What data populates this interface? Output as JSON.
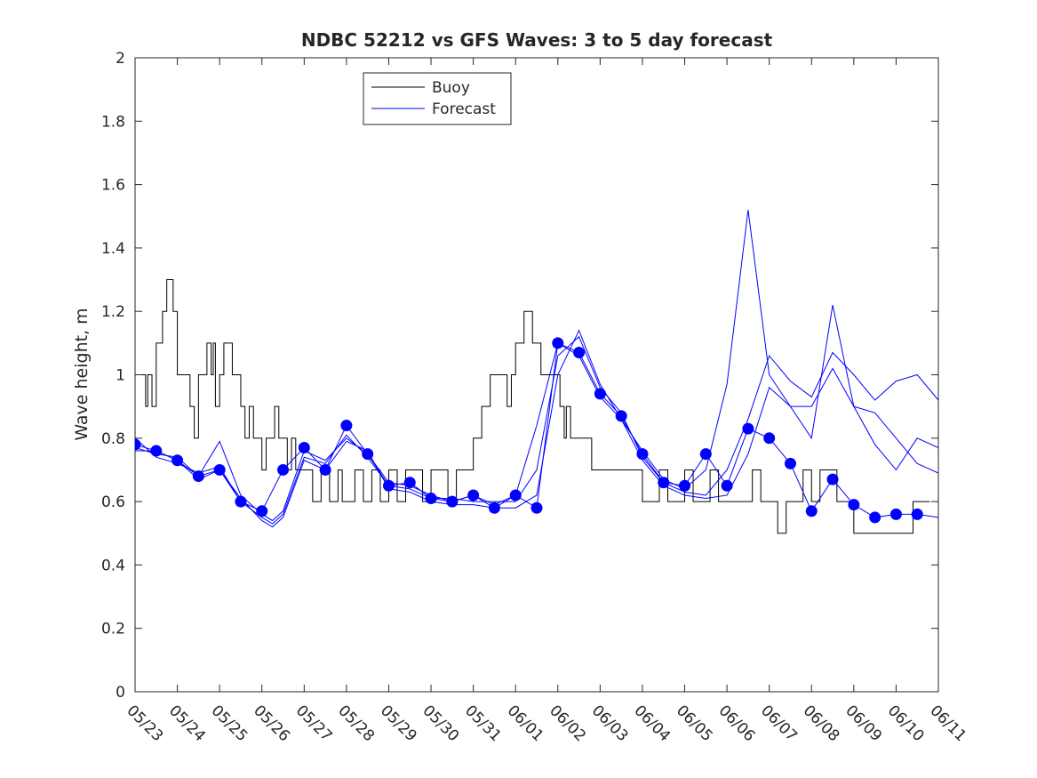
{
  "chart_data": {
    "type": "line",
    "title": "NDBC 52212 vs GFS Waves: 3 to 5 day forecast",
    "xlabel": "",
    "ylabel": "Wave height, m",
    "xlim": [
      "05/23",
      "06/11"
    ],
    "ylim": [
      0,
      2
    ],
    "yticks": [
      0,
      0.2,
      0.4,
      0.6,
      0.8,
      1,
      1.2,
      1.4,
      1.6,
      1.8,
      2
    ],
    "ytick_labels": [
      "0",
      "0.2",
      "0.4",
      "0.6",
      "0.8",
      "1",
      "1.2",
      "1.4",
      "1.6",
      "1.8",
      "2"
    ],
    "xtick_labels": [
      "05/23",
      "05/24",
      "05/25",
      "05/26",
      "05/27",
      "05/28",
      "05/29",
      "05/30",
      "05/31",
      "06/01",
      "06/02",
      "06/03",
      "06/04",
      "06/05",
      "06/06",
      "06/07",
      "06/08",
      "06/09",
      "06/10",
      "06/11"
    ],
    "grid": false,
    "legend": {
      "position": "top-left-inner",
      "entries": [
        "Buoy",
        "Forecast"
      ]
    },
    "colors": {
      "buoy": "#000000",
      "forecast": "#0000ff",
      "markers": "#0000ff"
    },
    "series": [
      {
        "name": "Buoy",
        "x_days": [
          0,
          0.2,
          0.25,
          0.3,
          0.4,
          0.5,
          0.6,
          0.65,
          0.7,
          0.75,
          0.8,
          0.9,
          1.0,
          1.1,
          1.2,
          1.3,
          1.4,
          1.5,
          1.6,
          1.7,
          1.8,
          1.85,
          1.9,
          2.0,
          2.1,
          2.2,
          2.3,
          2.4,
          2.5,
          2.6,
          2.7,
          2.8,
          2.9,
          3.0,
          3.1,
          3.2,
          3.3,
          3.4,
          3.5,
          3.6,
          3.7,
          3.8,
          3.9,
          4.0,
          4.2,
          4.4,
          4.6,
          4.8,
          4.9,
          5.0,
          5.2,
          5.4,
          5.6,
          5.8,
          6.0,
          6.2,
          6.4,
          6.6,
          6.8,
          7.0,
          7.2,
          7.4,
          7.6,
          7.8,
          8.0,
          8.2,
          8.4,
          8.6,
          8.8,
          8.9,
          9.0,
          9.2,
          9.4,
          9.6,
          9.8,
          10.0,
          10.05,
          10.1,
          10.15,
          10.2,
          10.3,
          10.4,
          10.5,
          10.6,
          10.8,
          11.0,
          11.2,
          11.4,
          11.6,
          11.8,
          12.0,
          12.2,
          12.4,
          12.6,
          12.8,
          13.0,
          13.2,
          13.4,
          13.6,
          13.8,
          14.0,
          14.2,
          14.4,
          14.6,
          14.8,
          15.0,
          15.2,
          15.4,
          15.6,
          15.8,
          16.0,
          16.2,
          16.4,
          16.6,
          16.8,
          17.0,
          17.2,
          17.4,
          17.6,
          17.8,
          18.0,
          18.2,
          18.4,
          18.6,
          18.8
        ],
        "values": [
          1.0,
          1.0,
          0.9,
          1.0,
          0.9,
          1.1,
          1.1,
          1.2,
          1.2,
          1.3,
          1.3,
          1.2,
          1.0,
          1.0,
          1.0,
          0.9,
          0.8,
          1.0,
          1.0,
          1.1,
          1.0,
          1.1,
          0.9,
          1.0,
          1.1,
          1.1,
          1.0,
          1.0,
          0.9,
          0.8,
          0.9,
          0.8,
          0.8,
          0.7,
          0.8,
          0.8,
          0.9,
          0.8,
          0.8,
          0.7,
          0.8,
          0.7,
          0.7,
          0.7,
          0.6,
          0.7,
          0.6,
          0.7,
          0.6,
          0.6,
          0.7,
          0.6,
          0.7,
          0.6,
          0.7,
          0.6,
          0.7,
          0.7,
          0.6,
          0.7,
          0.7,
          0.6,
          0.7,
          0.7,
          0.8,
          0.9,
          1.0,
          1.0,
          0.9,
          1.0,
          1.1,
          1.2,
          1.1,
          1.0,
          1.0,
          1.0,
          0.9,
          0.9,
          0.8,
          0.9,
          0.8,
          0.8,
          0.8,
          0.8,
          0.7,
          0.7,
          0.7,
          0.7,
          0.7,
          0.7,
          0.6,
          0.6,
          0.7,
          0.6,
          0.6,
          0.7,
          0.6,
          0.6,
          0.7,
          0.6,
          0.6,
          0.6,
          0.6,
          0.7,
          0.6,
          0.6,
          0.5,
          0.6,
          0.6,
          0.7,
          0.6,
          0.7,
          0.7,
          0.6,
          0.6,
          0.5,
          0.5,
          0.5,
          0.5,
          0.5,
          0.5,
          0.5,
          0.6,
          0.6,
          0.6
        ]
      },
      {
        "name": "Forecast",
        "x_days": [
          0,
          0.5,
          1,
          1.5,
          2,
          2.5,
          3,
          3.5,
          4,
          4.5,
          5,
          5.5,
          6,
          6.5,
          7,
          7.5,
          8,
          8.5,
          9,
          9.5,
          10,
          10.5,
          11,
          11.5,
          12,
          12.5,
          13,
          13.5,
          14,
          14.5,
          15,
          15.5,
          16,
          16.5,
          17,
          17.5,
          18,
          18.5,
          19
        ],
        "values": [
          0.78,
          0.76,
          0.73,
          0.68,
          0.7,
          0.6,
          0.57,
          0.7,
          0.77,
          0.7,
          0.84,
          0.75,
          0.65,
          0.66,
          0.61,
          0.6,
          0.62,
          0.58,
          0.62,
          0.58,
          1.1,
          1.07,
          0.94,
          0.87,
          0.75,
          0.66,
          0.65,
          0.75,
          0.65,
          0.83,
          0.8,
          0.72,
          0.57,
          0.67,
          0.59,
          0.55,
          0.56,
          0.56,
          0.55
        ]
      }
    ],
    "markers": {
      "x_days": [
        0,
        0.5,
        1,
        1.5,
        2,
        2.5,
        3,
        3.5,
        4,
        4.5,
        5,
        5.5,
        6,
        6.5,
        7,
        7.5,
        8,
        8.5,
        9,
        9.5,
        10,
        10.5,
        11,
        11.5,
        12,
        12.5,
        13,
        13.5,
        14,
        14.5,
        15,
        15.5,
        16,
        16.5,
        17,
        17.5,
        18,
        18.5
      ],
      "values": [
        0.78,
        0.76,
        0.73,
        0.68,
        0.7,
        0.6,
        0.57,
        0.7,
        0.77,
        0.7,
        0.84,
        0.75,
        0.65,
        0.66,
        0.61,
        0.6,
        0.62,
        0.58,
        0.62,
        0.58,
        1.1,
        1.07,
        0.94,
        0.87,
        0.75,
        0.66,
        0.65,
        0.75,
        0.65,
        0.83,
        0.8,
        0.72,
        0.57,
        0.67,
        0.59,
        0.55,
        0.56,
        0.56
      ]
    },
    "forecast_runs": [
      {
        "x_days": [
          0,
          0.5,
          1,
          1.5,
          2,
          2.5,
          3,
          3.25,
          3.5,
          4,
          4.5,
          5,
          5.5,
          6,
          6.5,
          7,
          7.5,
          8,
          8.5,
          9,
          9.5,
          10,
          10.5,
          11,
          11.5,
          12,
          12.5,
          13,
          13.5,
          14,
          14.5,
          15,
          15.5,
          16,
          16.5,
          17,
          17.5,
          18,
          18.5,
          19
        ],
        "values": [
          0.77,
          0.75,
          0.74,
          0.68,
          0.79,
          0.62,
          0.56,
          0.54,
          0.57,
          0.76,
          0.73,
          0.8,
          0.75,
          0.66,
          0.65,
          0.62,
          0.6,
          0.62,
          0.59,
          0.62,
          0.84,
          1.1,
          1.06,
          0.93,
          0.86,
          0.76,
          0.67,
          0.64,
          0.7,
          0.97,
          1.52,
          1.0,
          0.9,
          0.8,
          1.22,
          0.9,
          0.78,
          0.7,
          0.8,
          0.77
        ]
      },
      {
        "x_days": [
          0,
          0.5,
          1,
          1.5,
          2,
          2.5,
          3,
          3.25,
          3.5,
          4,
          4.5,
          5,
          5.5,
          6,
          6.5,
          7,
          7.5,
          8,
          8.5,
          9,
          9.5,
          10,
          10.5,
          11,
          11.5,
          12,
          12.5,
          13,
          13.5,
          14,
          14.5,
          15,
          15.5,
          16,
          16.5,
          17,
          17.5,
          18,
          18.5,
          19
        ],
        "values": [
          0.8,
          0.74,
          0.72,
          0.69,
          0.71,
          0.6,
          0.55,
          0.53,
          0.56,
          0.74,
          0.72,
          0.81,
          0.74,
          0.65,
          0.64,
          0.61,
          0.61,
          0.6,
          0.6,
          0.6,
          0.7,
          1.06,
          1.12,
          0.96,
          0.88,
          0.74,
          0.66,
          0.63,
          0.62,
          0.7,
          0.86,
          1.06,
          0.98,
          0.93,
          1.07,
          1.0,
          0.92,
          0.98,
          1.0,
          0.92
        ]
      },
      {
        "x_days": [
          0,
          0.5,
          1,
          1.5,
          2,
          2.5,
          3,
          3.25,
          3.5,
          4,
          4.5,
          5,
          5.5,
          6,
          6.5,
          7,
          7.5,
          8,
          8.5,
          9,
          9.5,
          10,
          10.5,
          11,
          11.5,
          12,
          12.5,
          13,
          13.5,
          14,
          14.5,
          15,
          15.5,
          16,
          16.5,
          17,
          17.5,
          18,
          18.5,
          19
        ],
        "values": [
          0.76,
          0.76,
          0.73,
          0.67,
          0.7,
          0.61,
          0.54,
          0.52,
          0.55,
          0.73,
          0.7,
          0.79,
          0.76,
          0.64,
          0.63,
          0.6,
          0.59,
          0.59,
          0.58,
          0.58,
          0.62,
          1.0,
          1.14,
          0.97,
          0.86,
          0.73,
          0.65,
          0.62,
          0.61,
          0.62,
          0.75,
          0.96,
          0.9,
          0.9,
          1.02,
          0.9,
          0.88,
          0.8,
          0.72,
          0.69
        ]
      }
    ]
  }
}
